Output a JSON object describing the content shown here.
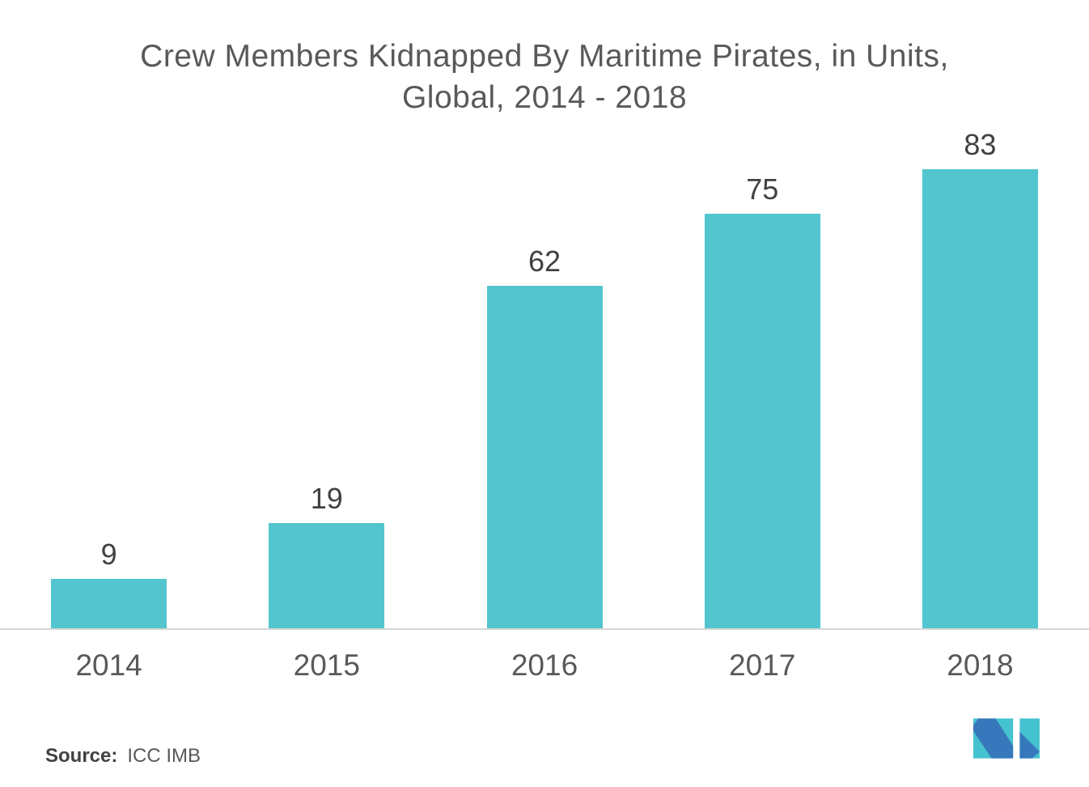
{
  "title": {
    "line1": "Crew Members Kidnapped By Maritime Pirates, in Units,",
    "line2": "Global, 2014 - 2018"
  },
  "chart_data": {
    "type": "bar",
    "categories": [
      "2014",
      "2015",
      "2016",
      "2017",
      "2018"
    ],
    "values": [
      9,
      19,
      62,
      75,
      83
    ],
    "title": "Crew Members Kidnapped By Maritime Pirates, in Units, Global, 2014 - 2018",
    "xlabel": "",
    "ylabel": "",
    "ylim": [
      0,
      90
    ],
    "grid": false,
    "legend": false,
    "bar_color": "#52C5CE",
    "value_label_color": "#414042",
    "tick_label_color": "#58595B",
    "title_color": "#58595B",
    "axis_line_color": "#D7D7D7"
  },
  "source": {
    "label": "Source:",
    "value": "ICC IMB"
  },
  "logo": {
    "name": "mordor-intelligence-mark",
    "blue": "#3778BC",
    "teal": "#45C2CF"
  }
}
